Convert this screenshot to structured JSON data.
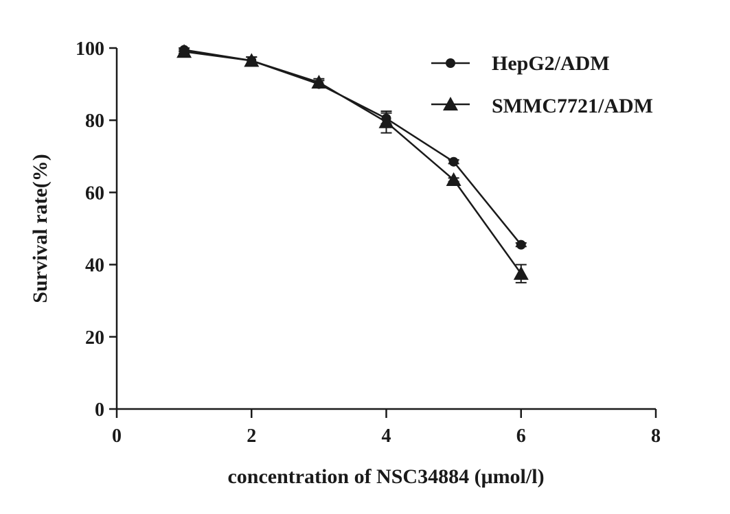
{
  "chart_data": {
    "type": "line",
    "title": "",
    "xlabel": "concentration of  NSC34884  (μmol/l)",
    "ylabel": "Survival rate(%)",
    "xlim": [
      0,
      8
    ],
    "ylim": [
      0,
      100
    ],
    "xticks": [
      "0",
      "2",
      "4",
      "6",
      "8"
    ],
    "yticks": [
      "0",
      "20",
      "40",
      "60",
      "80",
      "100"
    ],
    "grid": false,
    "legend_position": "top-right",
    "series": [
      {
        "name": "HepG2/ADM",
        "marker": "circle",
        "color": "#1a1a1a",
        "x": [
          1,
          2,
          3,
          4,
          5,
          6
        ],
        "y": [
          99.5,
          96.5,
          90.0,
          80.5,
          68.5,
          45.5
        ],
        "err": [
          0.5,
          1.0,
          1.0,
          1.5,
          0.5,
          0.5
        ]
      },
      {
        "name": "SMMC7721/ADM",
        "marker": "triangle",
        "color": "#1a1a1a",
        "x": [
          1,
          2,
          3,
          4,
          5,
          6
        ],
        "y": [
          99.0,
          96.5,
          90.5,
          79.5,
          63.5,
          37.5
        ],
        "err": [
          0.5,
          1.0,
          1.0,
          3.0,
          0.5,
          2.5
        ]
      }
    ]
  }
}
